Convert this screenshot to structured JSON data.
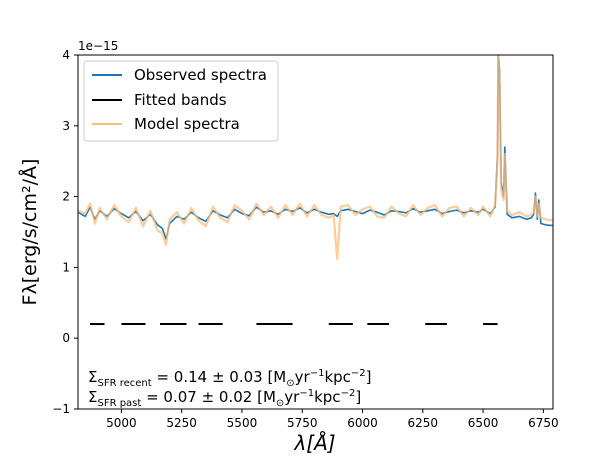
{
  "chart_data": {
    "type": "line",
    "title": "",
    "xlabel": "λ[Å]",
    "ylabel": "Fλ[erg/s/cm²/Å]",
    "y_scale_label": "1e−15",
    "xlim": [
      4820,
      6790
    ],
    "ylim": [
      -1,
      4
    ],
    "x_ticks": [
      5000,
      5250,
      5500,
      5750,
      6000,
      6250,
      6500,
      6750
    ],
    "y_ticks": [
      -1,
      0,
      1,
      2,
      3,
      4
    ],
    "grid": false,
    "legend": {
      "placement": "top-left",
      "entries": [
        {
          "label": "Observed spectra",
          "color": "#1f77b4"
        },
        {
          "label": "Fitted bands",
          "color": "#000000"
        },
        {
          "label": "Model spectra",
          "color": "#ffbb78"
        }
      ]
    },
    "series": [
      {
        "name": "Observed spectra",
        "color": "#1f77b4",
        "x": [
          4820,
          4850,
          4870,
          4890,
          4910,
          4940,
          4970,
          5000,
          5030,
          5060,
          5090,
          5120,
          5150,
          5170,
          5185,
          5200,
          5230,
          5260,
          5290,
          5320,
          5350,
          5380,
          5410,
          5440,
          5470,
          5500,
          5530,
          5560,
          5590,
          5620,
          5650,
          5680,
          5710,
          5740,
          5770,
          5800,
          5830,
          5860,
          5880,
          5895,
          5910,
          5940,
          5970,
          6000,
          6030,
          6060,
          6090,
          6120,
          6150,
          6180,
          6210,
          6240,
          6270,
          6300,
          6330,
          6360,
          6390,
          6420,
          6450,
          6480,
          6500,
          6530,
          6550,
          6560,
          6563,
          6568,
          6575,
          6585,
          6590,
          6600,
          6620,
          6650,
          6680,
          6700,
          6710,
          6717,
          6725,
          6731,
          6740,
          6760,
          6790
        ],
        "y": [
          1.78,
          1.72,
          1.85,
          1.68,
          1.8,
          1.72,
          1.83,
          1.76,
          1.7,
          1.79,
          1.66,
          1.75,
          1.6,
          1.55,
          1.4,
          1.62,
          1.72,
          1.68,
          1.78,
          1.7,
          1.65,
          1.8,
          1.74,
          1.7,
          1.82,
          1.76,
          1.73,
          1.85,
          1.78,
          1.8,
          1.75,
          1.82,
          1.79,
          1.84,
          1.77,
          1.82,
          1.78,
          1.75,
          1.76,
          1.72,
          1.8,
          1.82,
          1.79,
          1.76,
          1.81,
          1.78,
          1.74,
          1.8,
          1.79,
          1.77,
          1.83,
          1.78,
          1.8,
          1.82,
          1.76,
          1.79,
          1.81,
          1.77,
          1.8,
          1.78,
          1.82,
          1.76,
          1.85,
          2.6,
          4.0,
          3.8,
          2.2,
          2.0,
          2.7,
          1.75,
          1.7,
          1.72,
          1.68,
          1.7,
          1.75,
          2.05,
          1.68,
          1.95,
          1.62,
          1.6,
          1.59
        ]
      },
      {
        "name": "Model spectra",
        "color": "#ffbb78",
        "x": [
          4820,
          4850,
          4870,
          4890,
          4910,
          4940,
          4970,
          5000,
          5030,
          5060,
          5090,
          5120,
          5150,
          5170,
          5185,
          5200,
          5230,
          5260,
          5290,
          5320,
          5350,
          5380,
          5410,
          5440,
          5470,
          5500,
          5530,
          5560,
          5590,
          5620,
          5650,
          5680,
          5710,
          5740,
          5770,
          5800,
          5830,
          5860,
          5880,
          5895,
          5910,
          5940,
          5970,
          6000,
          6030,
          6060,
          6090,
          6120,
          6150,
          6180,
          6210,
          6240,
          6270,
          6300,
          6330,
          6360,
          6390,
          6420,
          6450,
          6480,
          6500,
          6530,
          6550,
          6560,
          6563,
          6568,
          6575,
          6585,
          6590,
          6600,
          6620,
          6650,
          6680,
          6700,
          6710,
          6717,
          6725,
          6731,
          6740,
          6760,
          6790
        ],
        "y": [
          1.8,
          1.76,
          1.9,
          1.62,
          1.84,
          1.68,
          1.88,
          1.72,
          1.64,
          1.84,
          1.58,
          1.8,
          1.52,
          1.48,
          1.32,
          1.68,
          1.78,
          1.62,
          1.84,
          1.66,
          1.58,
          1.86,
          1.7,
          1.64,
          1.88,
          1.8,
          1.68,
          1.9,
          1.74,
          1.86,
          1.7,
          1.88,
          1.74,
          1.9,
          1.72,
          1.88,
          1.74,
          1.7,
          1.74,
          1.12,
          1.86,
          1.88,
          1.74,
          1.82,
          1.86,
          1.72,
          1.7,
          1.86,
          1.76,
          1.72,
          1.88,
          1.74,
          1.84,
          1.88,
          1.72,
          1.84,
          1.86,
          1.72,
          1.84,
          1.74,
          1.86,
          1.72,
          1.88,
          2.5,
          4.0,
          3.7,
          2.1,
          1.95,
          2.6,
          1.8,
          1.74,
          1.78,
          1.72,
          1.74,
          1.78,
          2.0,
          1.72,
          1.9,
          1.7,
          1.68,
          1.66
        ]
      }
    ],
    "fitted_bands": {
      "name": "Fitted bands",
      "color": "#000000",
      "y": 0.2,
      "segments": [
        [
          4870,
          4930
        ],
        [
          5000,
          5100
        ],
        [
          5160,
          5270
        ],
        [
          5320,
          5420
        ],
        [
          5560,
          5710
        ],
        [
          5860,
          5960
        ],
        [
          6020,
          6110
        ],
        [
          6260,
          6350
        ],
        [
          6500,
          6560
        ]
      ]
    },
    "annotations": [
      {
        "text_main": "Σ",
        "sub": "SFR recent",
        "rest": " = 0.14 ± 0.03 [M",
        "sun_sub": "⊙",
        "unit_tail": "yr",
        "sup1": "−1",
        "unit_tail2": "kpc",
        "sup2": "−2",
        "close": "]"
      },
      {
        "text_main": "Σ",
        "sub": "SFR past",
        "rest": " = 0.07 ± 0.02 [M",
        "sun_sub": "⊙",
        "unit_tail": "yr",
        "sup1": "−1",
        "unit_tail2": "kpc",
        "sup2": "−2",
        "close": "]"
      }
    ]
  }
}
